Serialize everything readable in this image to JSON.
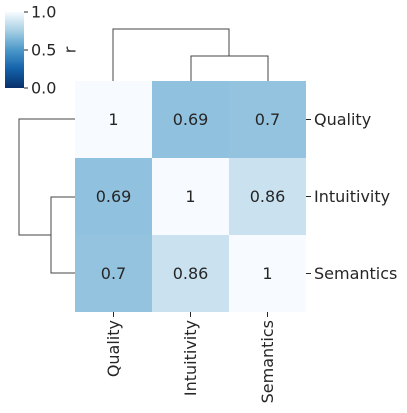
{
  "chart_data": {
    "type": "heatmap",
    "title": "",
    "row_labels": [
      "Quality",
      "Intuitivity",
      "Semantics"
    ],
    "col_labels": [
      "Quality",
      "Intuitivity",
      "Semantics"
    ],
    "values": [
      [
        1,
        0.69,
        0.7
      ],
      [
        0.69,
        1,
        0.86
      ],
      [
        0.7,
        0.86,
        1
      ]
    ],
    "cell_labels": [
      [
        "1",
        "0.69",
        "0.7"
      ],
      [
        "0.69",
        "1",
        "0.86"
      ],
      [
        "0.7",
        "0.86",
        "1"
      ]
    ],
    "colorbar": {
      "label": "r",
      "ticks": [
        {
          "value": 1.0,
          "label": "1.0"
        },
        {
          "value": 0.5,
          "label": "0.5"
        },
        {
          "value": 0.0,
          "label": "0.0"
        }
      ],
      "range": [
        0,
        1
      ],
      "colormap": "Blues_r"
    },
    "row_dendrogram": true,
    "col_dendrogram": true
  }
}
